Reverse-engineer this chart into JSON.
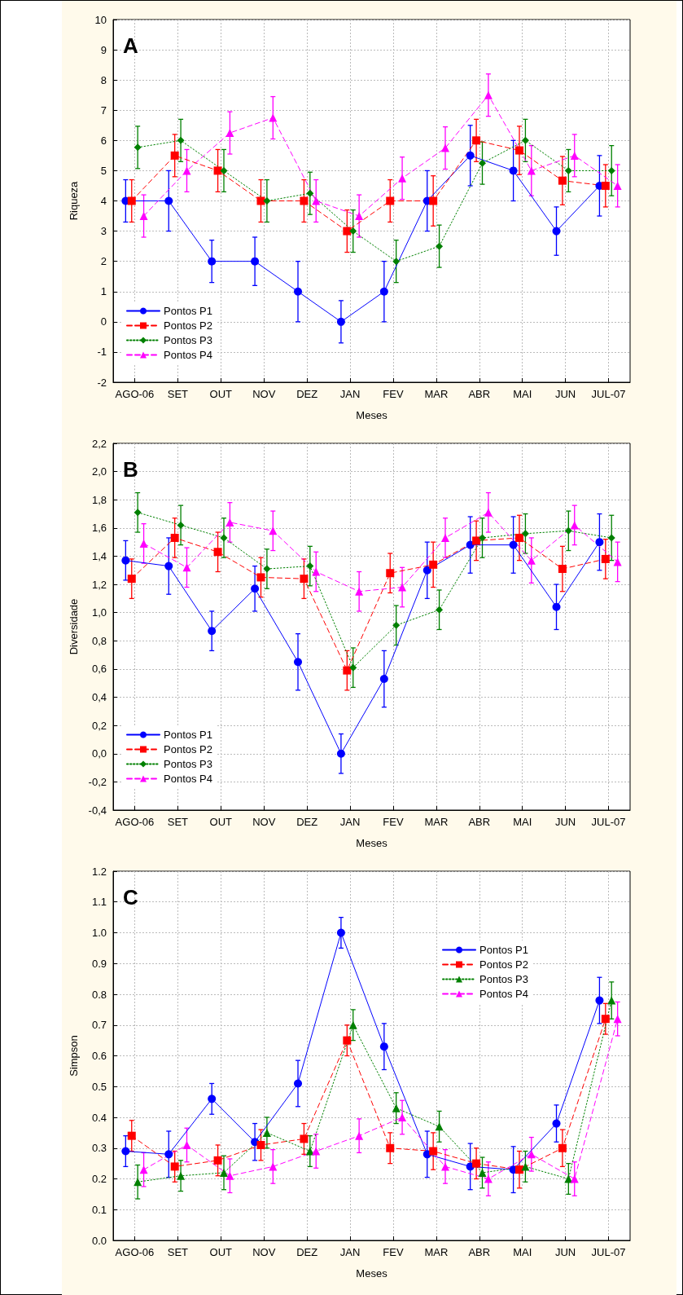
{
  "chart_data": [
    {
      "type": "line",
      "title": "A",
      "xlabel": "Meses",
      "ylabel": "Riqueza",
      "categories": [
        "AGO-06",
        "SET",
        "OUT",
        "NOV",
        "DEZ",
        "JAN",
        "FEV",
        "MAR",
        "ABR",
        "MAI",
        "JUN",
        "JUL-07"
      ],
      "ylim": [
        -2,
        10
      ],
      "yticks": [
        -2,
        -1,
        0,
        1,
        2,
        3,
        4,
        5,
        6,
        7,
        8,
        9,
        10
      ],
      "grid": true,
      "legend": "bottom left",
      "series": [
        {
          "name": "Pontos P1",
          "color": "#0000ff",
          "marker": "circle",
          "line_style": "solid",
          "values": [
            4,
            4,
            2,
            2,
            1,
            0,
            1,
            4,
            5.5,
            5,
            3,
            4.5
          ],
          "errors": [
            0.7,
            1,
            0.7,
            0.8,
            1,
            0.7,
            1,
            1,
            1,
            1,
            0.8,
            1
          ]
        },
        {
          "name": "Pontos P2",
          "color": "#ff0000",
          "marker": "square",
          "line_style": "dashed",
          "values": [
            4,
            5.5,
            5,
            4,
            4,
            3,
            4,
            4,
            6,
            5.67,
            4.67,
            4.5
          ],
          "errors": [
            0.7,
            0.7,
            0.7,
            0.7,
            0.7,
            0.7,
            0.7,
            0.83,
            0.7,
            0.8,
            0.8,
            0.7
          ]
        },
        {
          "name": "Pontos P3",
          "color": "#008000",
          "marker": "diamond",
          "line_style": "dotted",
          "values": [
            5.77,
            6,
            5,
            4,
            4.25,
            3,
            2,
            2.5,
            5.25,
            6,
            5,
            5
          ],
          "errors": [
            0.7,
            0.7,
            0.7,
            0.7,
            0.7,
            0.7,
            0.7,
            0.7,
            0.7,
            0.7,
            0.7,
            0.83
          ]
        },
        {
          "name": "Pontos P4",
          "color": "#ff00ff",
          "marker": "triangle",
          "line_style": "dashed",
          "values": [
            3.5,
            5,
            6.25,
            6.75,
            4,
            3.5,
            4.75,
            5.75,
            7.5,
            5,
            5.5,
            4.5
          ],
          "errors": [
            0.7,
            0.7,
            0.7,
            0.7,
            0.7,
            0.7,
            0.7,
            0.7,
            0.7,
            0.83,
            0.7,
            0.7
          ]
        }
      ]
    },
    {
      "type": "line",
      "title": "B",
      "xlabel": "Meses",
      "ylabel": "Diversidade",
      "categories": [
        "AGO-06",
        "SET",
        "OUT",
        "NOV",
        "DEZ",
        "JAN",
        "FEV",
        "MAR",
        "ABR",
        "MAI",
        "JUN",
        "JUL-07"
      ],
      "ylim": [
        -0.4,
        2.2
      ],
      "yticks": [
        {
          "value": -0.4,
          "label": "-0,4"
        },
        {
          "value": -0.2,
          "label": "-0,2"
        },
        {
          "value": 0,
          "label": "0,0"
        },
        {
          "value": 0.2,
          "label": "0,2"
        },
        {
          "value": 0.4,
          "label": "0,4"
        },
        {
          "value": 0.6,
          "label": "0,6"
        },
        {
          "value": 0.8,
          "label": "0,8"
        },
        {
          "value": 1,
          "label": "1,0"
        },
        {
          "value": 1.2,
          "label": "1,2"
        },
        {
          "value": 1.4,
          "label": "1,4"
        },
        {
          "value": 1.6,
          "label": "1,6"
        },
        {
          "value": 1.8,
          "label": "1,8"
        },
        {
          "value": 2,
          "label": "2,0"
        },
        {
          "value": 2.2,
          "label": "2,2"
        }
      ],
      "grid": true,
      "legend": "bottom left",
      "series": [
        {
          "name": "Pontos P1",
          "color": "#0000ff",
          "marker": "circle",
          "line_style": "solid",
          "values": [
            1.37,
            1.33,
            0.87,
            1.17,
            0.65,
            0,
            0.53,
            1.3,
            1.48,
            1.48,
            1.04,
            1.5
          ],
          "errors": [
            0.14,
            0.2,
            0.14,
            0.16,
            0.2,
            0.14,
            0.2,
            0.2,
            0.2,
            0.2,
            0.16,
            0.2
          ]
        },
        {
          "name": "Pontos P2",
          "color": "#ff0000",
          "marker": "square",
          "line_style": "dashed",
          "values": [
            1.24,
            1.53,
            1.43,
            1.25,
            1.24,
            0.59,
            1.28,
            1.34,
            1.51,
            1.53,
            1.31,
            1.38
          ],
          "errors": [
            0.14,
            0.14,
            0.14,
            0.14,
            0.14,
            0.14,
            0.14,
            0.16,
            0.14,
            0.16,
            0.16,
            0.14
          ]
        },
        {
          "name": "Pontos P3",
          "color": "#008000",
          "marker": "diamond",
          "line_style": "dotted",
          "values": [
            1.71,
            1.62,
            1.53,
            1.31,
            1.33,
            0.61,
            0.91,
            1.02,
            1.53,
            1.56,
            1.58,
            1.53
          ],
          "errors": [
            0.14,
            0.14,
            0.14,
            0.14,
            0.14,
            0.14,
            0.14,
            0.14,
            0.14,
            0.14,
            0.14,
            0.16
          ]
        },
        {
          "name": "Pontos P4",
          "color": "#ff00ff",
          "marker": "triangle",
          "line_style": "dashed",
          "values": [
            1.49,
            1.32,
            1.64,
            1.58,
            1.29,
            1.15,
            1.18,
            1.53,
            1.71,
            1.37,
            1.62,
            1.36
          ],
          "errors": [
            0.14,
            0.14,
            0.14,
            0.14,
            0.14,
            0.14,
            0.14,
            0.14,
            0.14,
            0.16,
            0.14,
            0.14
          ]
        }
      ]
    },
    {
      "type": "line",
      "title": "C",
      "xlabel": "Meses",
      "ylabel": "Simpson",
      "categories": [
        "AGO-06",
        "SET",
        "OUT",
        "NOV",
        "DEZ",
        "JAN",
        "FEV",
        "MAR",
        "ABR",
        "MAI",
        "JUN",
        "JUL-07"
      ],
      "ylim": [
        0,
        1.2
      ],
      "yticks": [
        {
          "value": 0,
          "label": "0.0"
        },
        0.1,
        0.2,
        0.3,
        0.4,
        0.5,
        0.6,
        0.7,
        0.8,
        0.9,
        {
          "value": 1,
          "label": "1.0"
        },
        1.1,
        1.2
      ],
      "grid": true,
      "legend": "top right",
      "series": [
        {
          "name": "Pontos P1",
          "color": "#0000ff",
          "marker": "circle",
          "line_style": "solid",
          "values": [
            0.29,
            0.28,
            0.46,
            0.32,
            0.51,
            1,
            0.63,
            0.28,
            0.24,
            0.23,
            0.38,
            0.78
          ],
          "errors": [
            0.05,
            0.075,
            0.05,
            0.06,
            0.075,
            0.05,
            0.075,
            0.075,
            0.075,
            0.075,
            0.06,
            0.075
          ]
        },
        {
          "name": "Pontos P2",
          "color": "#ff0000",
          "marker": "square",
          "line_style": "dashed",
          "values": [
            0.34,
            0.24,
            0.26,
            0.31,
            0.33,
            0.65,
            0.3,
            0.29,
            0.25,
            0.23,
            0.3,
            0.72
          ],
          "errors": [
            0.05,
            0.05,
            0.05,
            0.05,
            0.05,
            0.05,
            0.05,
            0.06,
            0.05,
            0.06,
            0.06,
            0.05
          ]
        },
        {
          "name": "Pontos P3",
          "color": "#008000",
          "marker": "triangle",
          "line_style": "dotted",
          "values": [
            0.19,
            0.21,
            0.22,
            0.35,
            0.29,
            0.7,
            0.43,
            0.37,
            0.22,
            0.24,
            0.2,
            0.78
          ],
          "errors": [
            0.055,
            0.05,
            0.055,
            0.05,
            0.05,
            0.05,
            0.05,
            0.05,
            0.05,
            0.05,
            0.05,
            0.06
          ]
        },
        {
          "name": "Pontos P4",
          "color": "#ff00ff",
          "marker": "triangle",
          "line_style": "dashed",
          "values": [
            0.23,
            0.31,
            0.21,
            0.24,
            0.29,
            0.34,
            0.4,
            0.24,
            0.2,
            0.28,
            0.2,
            0.72
          ],
          "errors": [
            0.055,
            0.055,
            0.055,
            0.055,
            0.055,
            0.055,
            0.055,
            0.055,
            0.055,
            0.055,
            0.055,
            0.055
          ]
        }
      ]
    }
  ]
}
